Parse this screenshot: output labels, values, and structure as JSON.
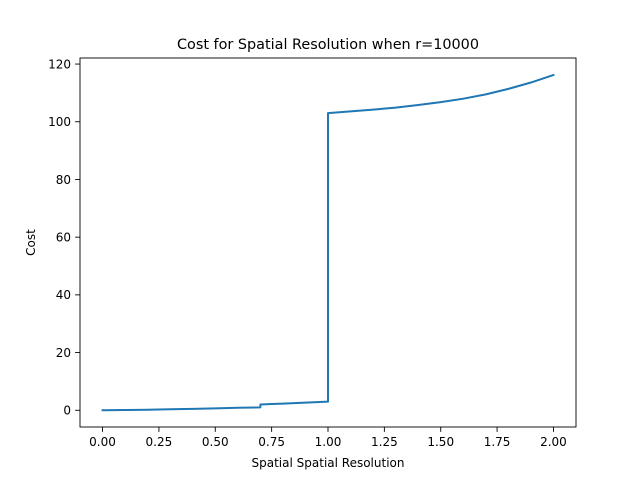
{
  "chart_data": {
    "type": "line",
    "title": "Cost for Spatial Resolution when r=10000",
    "xlabel": "Spatial Spatial Resolution",
    "ylabel": "Cost",
    "xlim": [
      -0.1,
      2.1
    ],
    "ylim": [
      -5.8,
      122.1
    ],
    "xticks": [
      0.0,
      0.25,
      0.5,
      0.75,
      1.0,
      1.25,
      1.5,
      1.75,
      2.0
    ],
    "xtick_labels": [
      "0.00",
      "0.25",
      "0.50",
      "0.75",
      "1.00",
      "1.25",
      "1.50",
      "1.75",
      "2.00"
    ],
    "yticks": [
      0,
      20,
      40,
      60,
      80,
      100,
      120
    ],
    "ytick_labels": [
      "0",
      "20",
      "40",
      "60",
      "80",
      "100",
      "120"
    ],
    "grid": false,
    "series": [
      {
        "color": "#1f77b4",
        "x": [
          0.0,
          0.1,
          0.2,
          0.3,
          0.4,
          0.5,
          0.6,
          0.7,
          0.7,
          0.75,
          0.8,
          0.9,
          1.0,
          1.0,
          1.1,
          1.2,
          1.3,
          1.4,
          1.5,
          1.6,
          1.7,
          1.8,
          1.9,
          2.0
        ],
        "y": [
          0.0,
          0.1,
          0.2,
          0.35,
          0.5,
          0.65,
          0.85,
          1.0,
          2.0,
          2.15,
          2.3,
          2.65,
          3.0,
          103.0,
          103.6,
          104.2,
          104.9,
          105.8,
          106.8,
          108.0,
          109.5,
          111.4,
          113.6,
          116.2
        ]
      }
    ]
  }
}
